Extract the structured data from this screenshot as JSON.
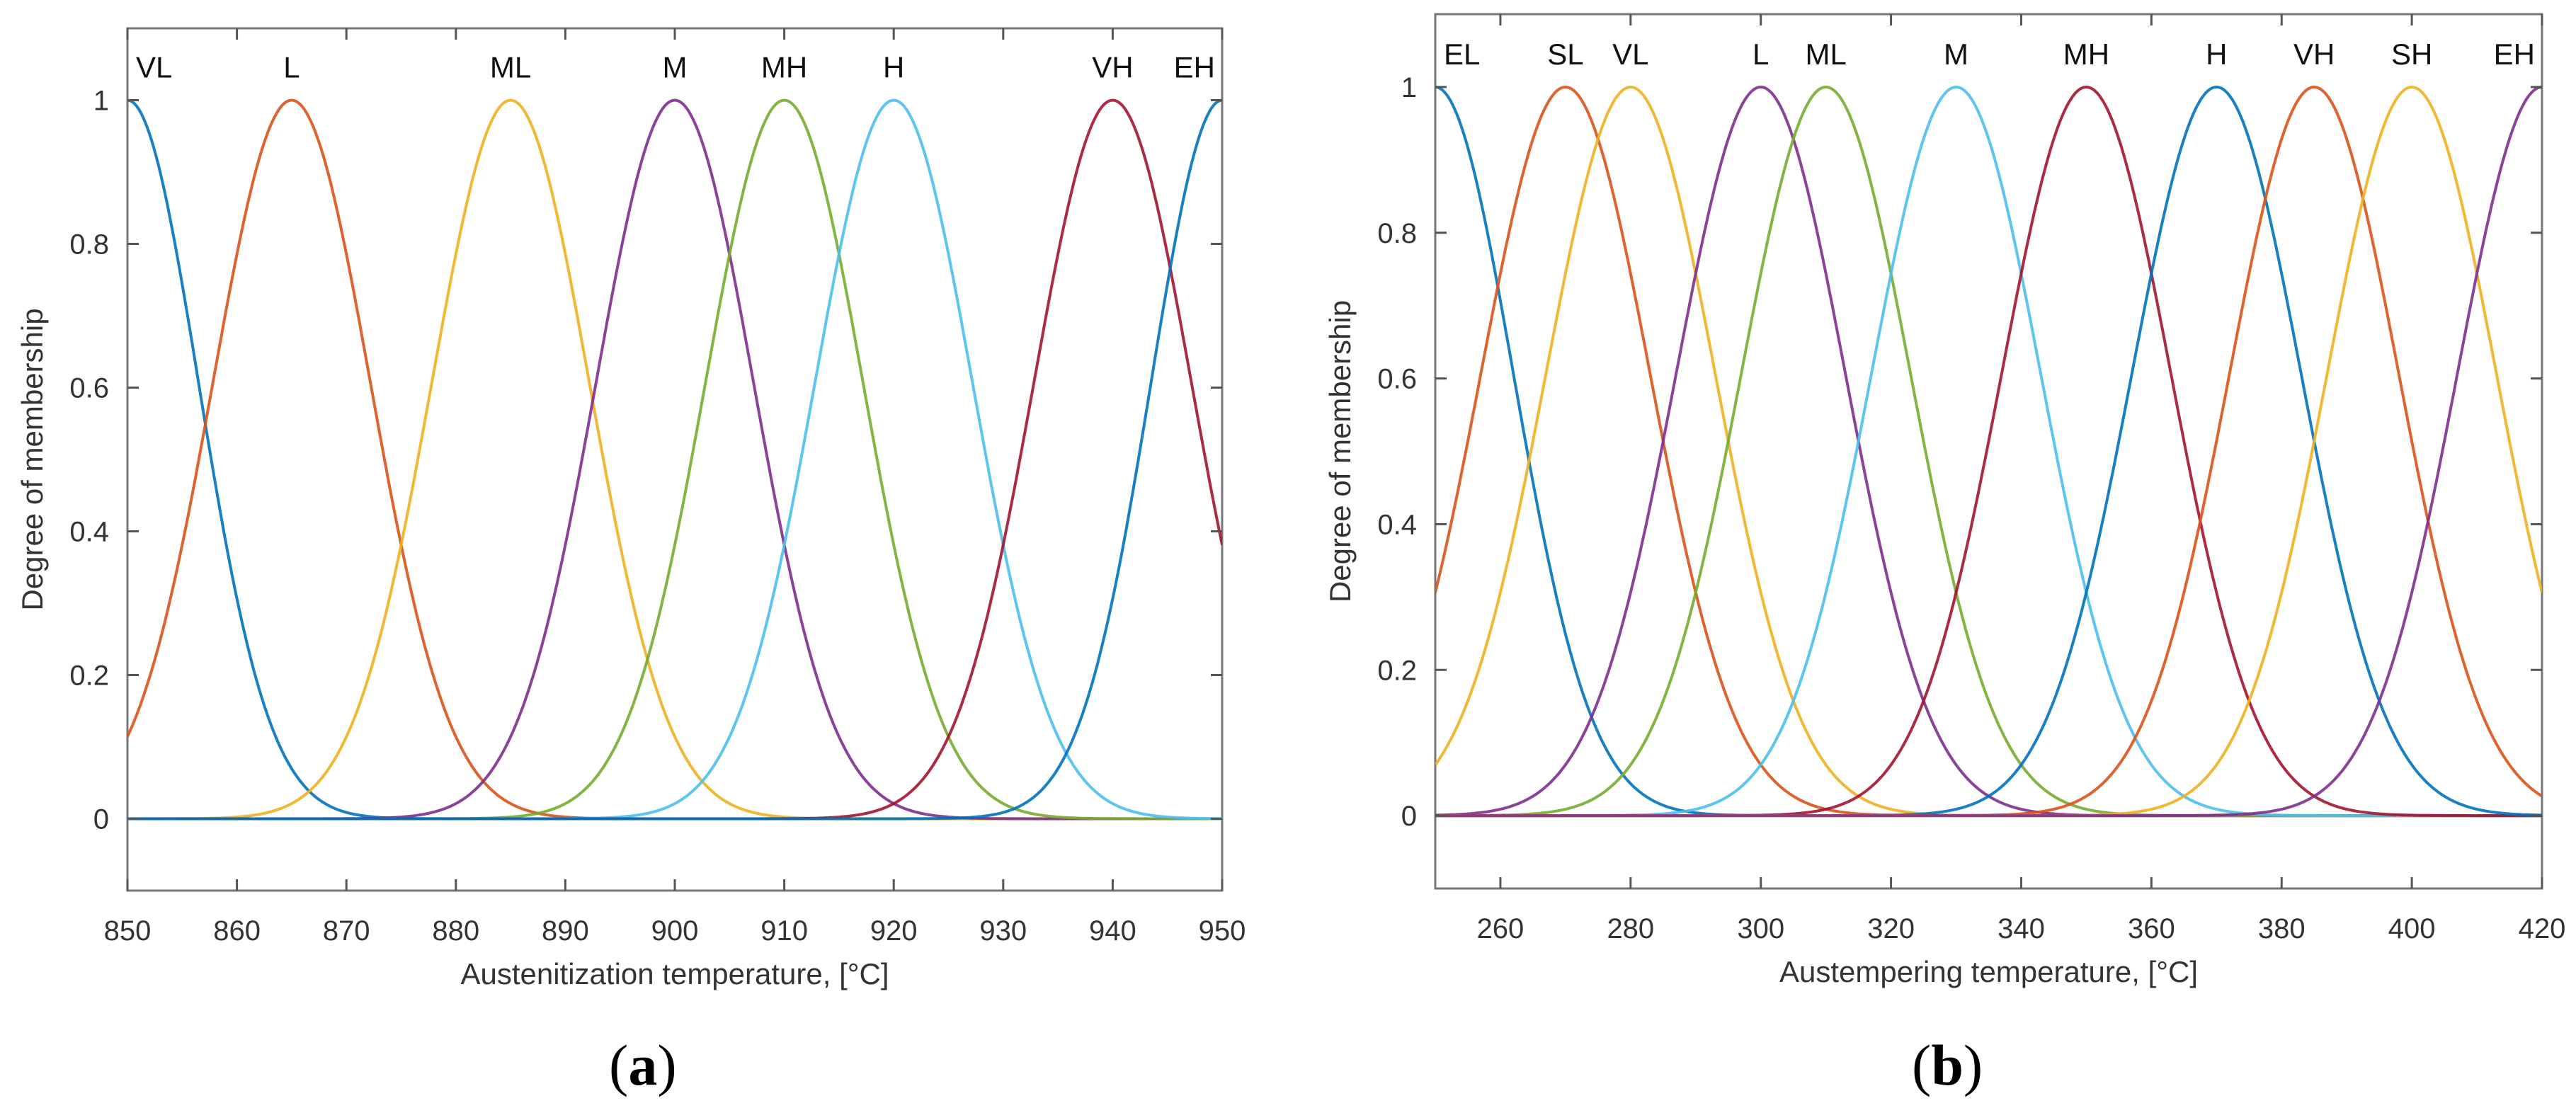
{
  "chart_data": [
    {
      "panel": "a",
      "type": "line",
      "title": "",
      "xlabel": "Austenitization temperature, [°C]",
      "ylabel": "Degree of membership",
      "xlim": [
        850,
        950
      ],
      "ylim": [
        -0.1,
        1.1
      ],
      "xticks": [
        850,
        860,
        870,
        880,
        890,
        900,
        910,
        920,
        930,
        940,
        950
      ],
      "yticks": [
        0,
        0.2,
        0.4,
        0.6,
        0.8,
        1
      ],
      "membership_function": "gaussian",
      "series": [
        {
          "name": "VL",
          "center": 850,
          "sigma": 6.5,
          "color": "#0072BD"
        },
        {
          "name": "L",
          "center": 865,
          "sigma": 7.2,
          "color": "#D95319"
        },
        {
          "name": "ML",
          "center": 885,
          "sigma": 7.2,
          "color": "#EDB120"
        },
        {
          "name": "M",
          "center": 900,
          "sigma": 7.2,
          "color": "#7E2F8E"
        },
        {
          "name": "MH",
          "center": 910,
          "sigma": 7.2,
          "color": "#77AC30"
        },
        {
          "name": "H",
          "center": 920,
          "sigma": 7.2,
          "color": "#4DBEEE"
        },
        {
          "name": "VH",
          "center": 940,
          "sigma": 7.2,
          "color": "#A2142F"
        },
        {
          "name": "EH",
          "center": 950,
          "sigma": 6.5,
          "color": "#0072BD"
        }
      ]
    },
    {
      "panel": "b",
      "type": "line",
      "title": "",
      "xlabel": "Austempering temperature, [°C]",
      "ylabel": "Degree of membership",
      "xlim": [
        250,
        420
      ],
      "ylim": [
        -0.1,
        1.1
      ],
      "xticks": [
        260,
        280,
        300,
        320,
        340,
        360,
        380,
        400,
        420
      ],
      "yticks": [
        0,
        0.2,
        0.4,
        0.6,
        0.8,
        1
      ],
      "membership_function": "gaussian",
      "series": [
        {
          "name": "EL",
          "center": 250,
          "sigma": 12,
          "color": "#0072BD"
        },
        {
          "name": "SL",
          "center": 270,
          "sigma": 13,
          "color": "#D95319"
        },
        {
          "name": "VL",
          "center": 280,
          "sigma": 13,
          "color": "#EDB120"
        },
        {
          "name": "L",
          "center": 300,
          "sigma": 13,
          "color": "#7E2F8E"
        },
        {
          "name": "ML",
          "center": 310,
          "sigma": 13,
          "color": "#77AC30"
        },
        {
          "name": "M",
          "center": 330,
          "sigma": 13,
          "color": "#4DBEEE"
        },
        {
          "name": "MH",
          "center": 350,
          "sigma": 13,
          "color": "#A2142F"
        },
        {
          "name": "H",
          "center": 370,
          "sigma": 13,
          "color": "#0072BD"
        },
        {
          "name": "VH",
          "center": 385,
          "sigma": 13,
          "color": "#D95319"
        },
        {
          "name": "SH",
          "center": 400,
          "sigma": 13,
          "color": "#EDB120"
        },
        {
          "name": "EH",
          "center": 420,
          "sigma": 13,
          "color": "#7E2F8E"
        }
      ]
    }
  ],
  "captions": {
    "a": {
      "open": "(",
      "letter": "a",
      "close": ")"
    },
    "b": {
      "open": "(",
      "letter": "b",
      "close": ")"
    }
  }
}
